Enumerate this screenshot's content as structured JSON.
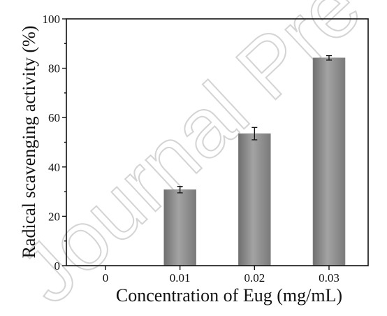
{
  "watermark": "Journal Pre-proof",
  "chart_data": {
    "type": "bar",
    "categories": [
      "0",
      "0.01",
      "0.02",
      "0.03"
    ],
    "values": [
      0,
      30.8,
      53.5,
      84.2
    ],
    "errors": [
      0,
      1.3,
      2.5,
      0.9
    ],
    "xlabel": "Concentration of Eug (mg/mL)",
    "ylabel": "Radical scavenging activity (%)",
    "ylim": [
      0,
      100
    ],
    "yticks": [
      "0",
      "20",
      "40",
      "60",
      "80",
      "100"
    ],
    "grid": false,
    "bar_color": "#8a8a8a"
  }
}
